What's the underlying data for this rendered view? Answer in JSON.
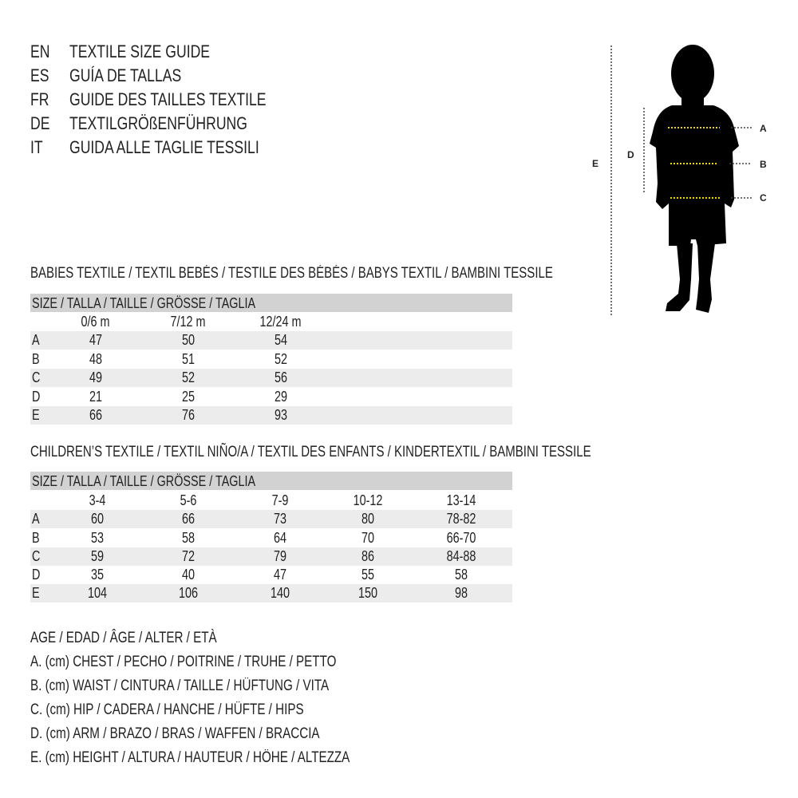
{
  "title_lines": [
    {
      "code": "EN",
      "text": "TEXTILE SIZE GUIDE"
    },
    {
      "code": "ES",
      "text": "GUÍA DE TALLAS"
    },
    {
      "code": "FR",
      "text": "GUIDE DES TAILLES TEXTILE"
    },
    {
      "code": "DE",
      "text": "TEXTILGRÖßENFÜHRUNG"
    },
    {
      "code": "IT",
      "text": "GUIDA ALLE TAGLIE TESSILI"
    }
  ],
  "figure": {
    "labels": {
      "a": "A",
      "b": "B",
      "c": "C",
      "d": "D",
      "e": "E"
    },
    "measure_line_color": "#e8d21a"
  },
  "babies": {
    "heading": "BABIES TEXTILE / TEXTIL BEBÉS / TESTILE DES BÉBÉS / BABYS TEXTIL / BAMBINI TESSILE",
    "size_header": "SIZE / TALLA / TAILLE / GRÖSSE / TAGLIA",
    "columns": [
      "0/6 m",
      "7/12 m",
      "12/24 m"
    ],
    "rows": [
      {
        "label": "A",
        "values": [
          "47",
          "50",
          "54"
        ]
      },
      {
        "label": "B",
        "values": [
          "48",
          "51",
          "52"
        ]
      },
      {
        "label": "C",
        "values": [
          "49",
          "52",
          "56"
        ]
      },
      {
        "label": "D",
        "values": [
          "21",
          "25",
          "29"
        ]
      },
      {
        "label": "E",
        "values": [
          "66",
          "76",
          "93"
        ]
      }
    ]
  },
  "children": {
    "heading": "CHILDREN’S TEXTILE / TEXTIL NIÑO/A / TEXTIL DES ENFANTS / KINDERTEXTIL / BAMBINI TESSILE",
    "size_header": "SIZE / TALLA / TAILLE / GRÖSSE / TAGLIA",
    "columns": [
      "3-4",
      "5-6",
      "7-9",
      "10-12",
      "13-14"
    ],
    "rows": [
      {
        "label": "A",
        "values": [
          "60",
          "66",
          "73",
          "80",
          "78-82"
        ]
      },
      {
        "label": "B",
        "values": [
          "53",
          "58",
          "64",
          "70",
          "66-70"
        ]
      },
      {
        "label": "C",
        "values": [
          "59",
          "72",
          "79",
          "86",
          "84-88"
        ]
      },
      {
        "label": "D",
        "values": [
          "35",
          "40",
          "47",
          "55",
          "58"
        ]
      },
      {
        "label": "E",
        "values": [
          "104",
          "106",
          "140",
          "150",
          "98"
        ]
      }
    ]
  },
  "legend": [
    "AGE / EDAD / ÂGE / ALTER / ETÀ",
    "A. (cm) CHEST / PECHO / POITRINE / TRUHE / PETTO",
    "B. (cm) WAIST / CINTURA / TAILLE / HÜFTUNG / VITA",
    "C. (cm) HIP / CADERA / HANCHE / HÜFTE / HIPS",
    "D. (cm) ARM / BRAZO / BRAS / WAFFEN / BRACCIA",
    "E. (cm) HEIGHT / ALTURA / HAUTEUR / HÖHE / ALTEZZA"
  ]
}
